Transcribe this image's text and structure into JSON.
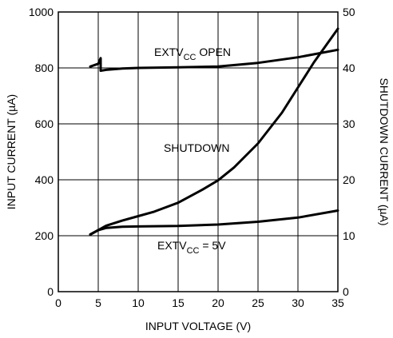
{
  "chart_data": {
    "type": "line",
    "xlabel": "INPUT VOLTAGE (V)",
    "ylabel": "INPUT CURRENT (µA)",
    "y2label": "SHUTDOWN CURRENT (µA)",
    "xlim": [
      0,
      35
    ],
    "ylim": [
      0,
      1000
    ],
    "y2lim": [
      0,
      50
    ],
    "x_ticks": [
      0,
      5,
      10,
      15,
      20,
      25,
      30,
      35
    ],
    "y_ticks": [
      0,
      200,
      400,
      600,
      800,
      1000
    ],
    "y2_ticks": [
      0,
      10,
      20,
      30,
      40,
      50
    ],
    "grid": true,
    "series": [
      {
        "name": "EXTVCC OPEN",
        "label_main": "EXTV",
        "label_sub": "CC",
        "label_suffix": " OPEN",
        "axis": "left",
        "x": [
          4,
          5,
          5.3,
          5.3,
          6,
          8,
          10,
          15,
          20,
          25,
          30,
          35
        ],
        "y": [
          805,
          815,
          835,
          790,
          793,
          798,
          800,
          802,
          805,
          818,
          838,
          865
        ]
      },
      {
        "name": "SHUTDOWN",
        "label_main": "SHUTDOWN",
        "label_sub": "",
        "label_suffix": "",
        "axis": "right",
        "x": [
          4,
          6,
          8,
          10,
          12,
          15,
          18,
          20,
          22,
          25,
          28,
          30,
          32,
          35
        ],
        "y": [
          10.2,
          11.8,
          12.7,
          13.5,
          14.3,
          15.9,
          18.2,
          19.9,
          22.2,
          26.5,
          32,
          36.5,
          41,
          47
        ]
      },
      {
        "name": "EXTVCC = 5V",
        "label_main": "EXTV",
        "label_sub": "CC",
        "label_suffix": " = 5V",
        "axis": "left",
        "x": [
          4,
          5,
          6,
          8,
          10,
          15,
          20,
          25,
          30,
          35
        ],
        "y": [
          205,
          220,
          228,
          232,
          233,
          235,
          240,
          250,
          265,
          290
        ]
      }
    ]
  }
}
